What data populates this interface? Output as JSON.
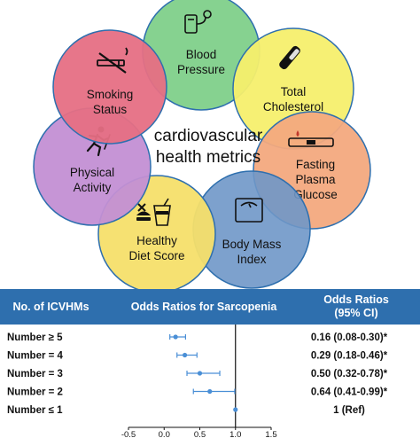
{
  "metrics": {
    "center_title_line1": "cardiovascular",
    "center_title_line2": "health metrics",
    "items": [
      {
        "line1": "Blood",
        "line2": "Pressure",
        "icon": "blood-pressure-monitor-icon",
        "color": "#7fd08a"
      },
      {
        "line1": "Total",
        "line2": "Cholesterol",
        "icon": "test-tube-icon",
        "color": "#f6ef6d"
      },
      {
        "line1": "Fasting",
        "line2": "Plasma",
        "line3": "Glucose",
        "icon": "glucose-meter-icon",
        "color": "#f3a97e"
      },
      {
        "line1": "Body Mass",
        "line2": "Index",
        "icon": "scale-icon",
        "color": "#6f97c8"
      },
      {
        "line1": "Healthy",
        "line2": "Diet Score",
        "icon": "food-drink-icon",
        "color": "#f6df6a"
      },
      {
        "line1": "Physical",
        "line2": "Activity",
        "icon": "running-person-icon",
        "color": "#c38fd4"
      },
      {
        "line1": "Smoking",
        "line2": "Status",
        "icon": "no-smoking-icon",
        "color": "#e66f84"
      }
    ]
  },
  "table_header": {
    "col1": "No. of ICVHMs",
    "col2": "Odds Ratios for Sarcopenia",
    "col3_line1": "Odds Ratios",
    "col3_line2": "(95% CI)",
    "background": "#2e6fae"
  },
  "chart_data": {
    "type": "forest",
    "xlim": [
      -0.5,
      1.5
    ],
    "xticks": [
      "-0.5",
      "0.0",
      "0.5",
      "1.0",
      "1.5"
    ],
    "reference_line": 1.0,
    "marker_color": "#4a8fd6",
    "rows": [
      {
        "label": "Number ≥ 5",
        "or": 0.16,
        "lo": 0.08,
        "hi": 0.3,
        "text": "0.16 (0.08-0.30)*"
      },
      {
        "label": "Number = 4",
        "or": 0.29,
        "lo": 0.18,
        "hi": 0.46,
        "text": "0.29 (0.18-0.46)*"
      },
      {
        "label": "Number = 3",
        "or": 0.5,
        "lo": 0.32,
        "hi": 0.78,
        "text": "0.50 (0.32-0.78)*"
      },
      {
        "label": "Number = 2",
        "or": 0.64,
        "lo": 0.41,
        "hi": 0.99,
        "text": "0.64 (0.41-0.99)*"
      },
      {
        "label": "Number ≤ 1",
        "or": 1.0,
        "lo": 1.0,
        "hi": 1.0,
        "text": "1 (Ref)"
      }
    ]
  }
}
